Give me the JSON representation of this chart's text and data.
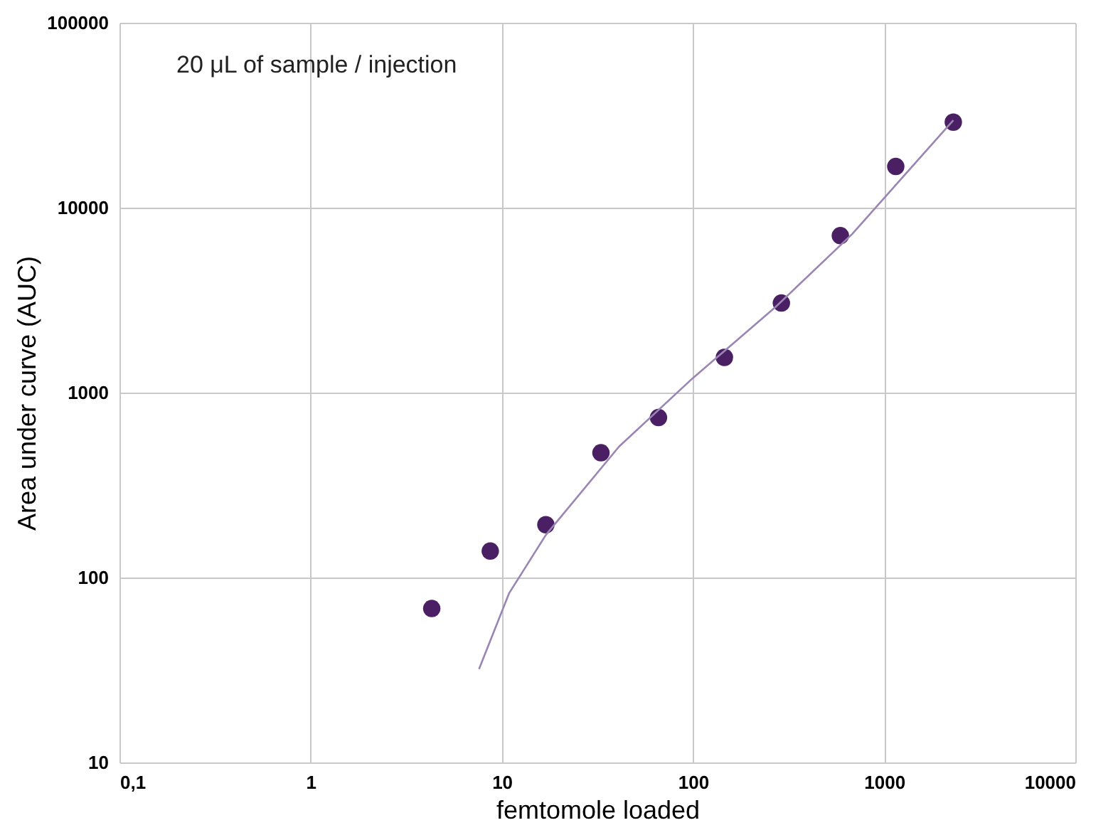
{
  "chart_data": {
    "type": "scatter",
    "xlabel": "femtomole loaded",
    "ylabel": "Area under curve (AUC)",
    "log": "xy",
    "grid": true,
    "annotations": [
      "20 μL of sample / injection"
    ],
    "xlim": [
      0.1,
      10000
    ],
    "ylim": [
      10,
      100000
    ],
    "xticks": [
      {
        "value": 0.1,
        "label": "0,1"
      },
      1,
      10,
      100,
      1000,
      10000
    ],
    "yticks": [
      10,
      100,
      1000,
      10000,
      100000
    ],
    "series": [
      {
        "color": "#4b1f63",
        "marker": "circle",
        "x": [
          4.3,
          8.7,
          17,
          33,
          66,
          146,
          290,
          590,
          1150,
          2300
        ],
        "values": [
          68,
          139,
          193,
          473,
          733,
          1550,
          3050,
          7060,
          16700,
          29000
        ]
      },
      {
        "type": "line",
        "color": "#9a86b4",
        "x": [
          7.6,
          10.9,
          17,
          41,
          100,
          270,
          680,
          2300
        ],
        "values": [
          32,
          82,
          170,
          510,
          1200,
          2900,
          7200,
          29700
        ]
      }
    ]
  }
}
